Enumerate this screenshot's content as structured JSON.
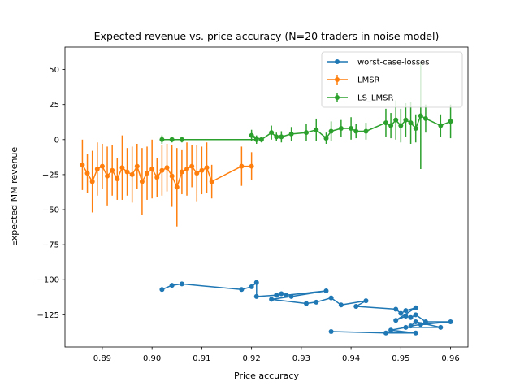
{
  "chart_data": {
    "type": "line",
    "title": "Expected revenue vs. price accuracy (N=20 traders in noise model)",
    "xlabel": "Price accuracy",
    "ylabel": "Expected MM revenue",
    "xlim": [
      0.8825,
      0.9635
    ],
    "ylim": [
      -148,
      66
    ],
    "xticks": [
      0.89,
      0.9,
      0.91,
      0.92,
      0.93,
      0.94,
      0.95,
      0.96
    ],
    "xtick_labels": [
      "0.89",
      "0.90",
      "0.91",
      "0.92",
      "0.93",
      "0.94",
      "0.95",
      "0.96"
    ],
    "yticks": [
      -125,
      -100,
      -75,
      -50,
      -25,
      0,
      25,
      50
    ],
    "ytick_labels": [
      "−125",
      "−100",
      "−75",
      "−50",
      "−25",
      "0",
      "25",
      "50"
    ],
    "grid": false,
    "legend_position": "top-right",
    "series": [
      {
        "name": "worst-case-losses",
        "color": "#1f77b4",
        "error_bars": false,
        "points": [
          [
            0.902,
            -107
          ],
          [
            0.904,
            -104
          ],
          [
            0.906,
            -103
          ],
          [
            0.918,
            -107
          ],
          [
            0.92,
            -105
          ],
          [
            0.921,
            -102
          ],
          [
            0.921,
            -112
          ],
          [
            0.925,
            -111
          ],
          [
            0.926,
            -110
          ],
          [
            0.927,
            -111
          ],
          [
            0.935,
            -108
          ],
          [
            0.928,
            -112
          ],
          [
            0.924,
            -114
          ],
          [
            0.931,
            -117
          ],
          [
            0.933,
            -116
          ],
          [
            0.936,
            -113
          ],
          [
            0.938,
            -118
          ],
          [
            0.943,
            -115
          ],
          [
            0.941,
            -119
          ],
          [
            0.949,
            -121
          ],
          [
            0.95,
            -124
          ],
          [
            0.951,
            -122
          ],
          [
            0.953,
            -120
          ],
          [
            0.949,
            -129
          ],
          [
            0.951,
            -126
          ],
          [
            0.952,
            -127
          ],
          [
            0.953,
            -125
          ],
          [
            0.955,
            -130
          ],
          [
            0.96,
            -130
          ],
          [
            0.954,
            -132
          ],
          [
            0.952,
            -133
          ],
          [
            0.953,
            -130
          ],
          [
            0.958,
            -134
          ],
          [
            0.951,
            -134
          ],
          [
            0.948,
            -136
          ],
          [
            0.953,
            -138
          ],
          [
            0.947,
            -138
          ],
          [
            0.936,
            -137
          ]
        ]
      },
      {
        "name": "LMSR",
        "color": "#ff7f0e",
        "error_bars": true,
        "points": [
          [
            0.886,
            -18,
            18
          ],
          [
            0.887,
            -24,
            14
          ],
          [
            0.888,
            -30,
            22
          ],
          [
            0.889,
            -21,
            19
          ],
          [
            0.89,
            -19,
            16
          ],
          [
            0.891,
            -26,
            21
          ],
          [
            0.892,
            -22,
            18
          ],
          [
            0.893,
            -28,
            15
          ],
          [
            0.894,
            -20,
            23
          ],
          [
            0.895,
            -23,
            17
          ],
          [
            0.896,
            -25,
            20
          ],
          [
            0.897,
            -19,
            16
          ],
          [
            0.898,
            -30,
            24
          ],
          [
            0.899,
            -24,
            19
          ],
          [
            0.9,
            -21,
            21
          ],
          [
            0.901,
            -27,
            14
          ],
          [
            0.902,
            -22,
            18
          ],
          [
            0.903,
            -20,
            17
          ],
          [
            0.904,
            -26,
            22
          ],
          [
            0.905,
            -34,
            28
          ],
          [
            0.906,
            -23,
            16
          ],
          [
            0.907,
            -21,
            19
          ],
          [
            0.908,
            -19,
            15
          ],
          [
            0.909,
            -24,
            20
          ],
          [
            0.91,
            -22,
            17
          ],
          [
            0.911,
            -20,
            18
          ],
          [
            0.912,
            -30,
            12
          ],
          [
            0.918,
            -19,
            14
          ],
          [
            0.92,
            -19,
            10
          ]
        ]
      },
      {
        "name": "LS_LMSR",
        "color": "#2ca02c",
        "error_bars": true,
        "points": [
          [
            0.902,
            0,
            3
          ],
          [
            0.904,
            0,
            2
          ],
          [
            0.906,
            0,
            2
          ],
          [
            0.921,
            0,
            3
          ],
          [
            0.92,
            3,
            4
          ],
          [
            0.922,
            0,
            2
          ],
          [
            0.924,
            5,
            5
          ],
          [
            0.925,
            2,
            3
          ],
          [
            0.926,
            2,
            4
          ],
          [
            0.928,
            4,
            5
          ],
          [
            0.931,
            5,
            6
          ],
          [
            0.933,
            7,
            8
          ],
          [
            0.935,
            1,
            4
          ],
          [
            0.936,
            6,
            7
          ],
          [
            0.938,
            8,
            6
          ],
          [
            0.94,
            8,
            8
          ],
          [
            0.941,
            6,
            5
          ],
          [
            0.943,
            6,
            6
          ],
          [
            0.947,
            12,
            10
          ],
          [
            0.948,
            10,
            9
          ],
          [
            0.949,
            14,
            14
          ],
          [
            0.95,
            10,
            12
          ],
          [
            0.951,
            14,
            12
          ],
          [
            0.952,
            12,
            15
          ],
          [
            0.953,
            8,
            10
          ],
          [
            0.954,
            17,
            38
          ],
          [
            0.955,
            15,
            10
          ],
          [
            0.958,
            10,
            8
          ],
          [
            0.96,
            13,
            12
          ]
        ]
      }
    ]
  }
}
